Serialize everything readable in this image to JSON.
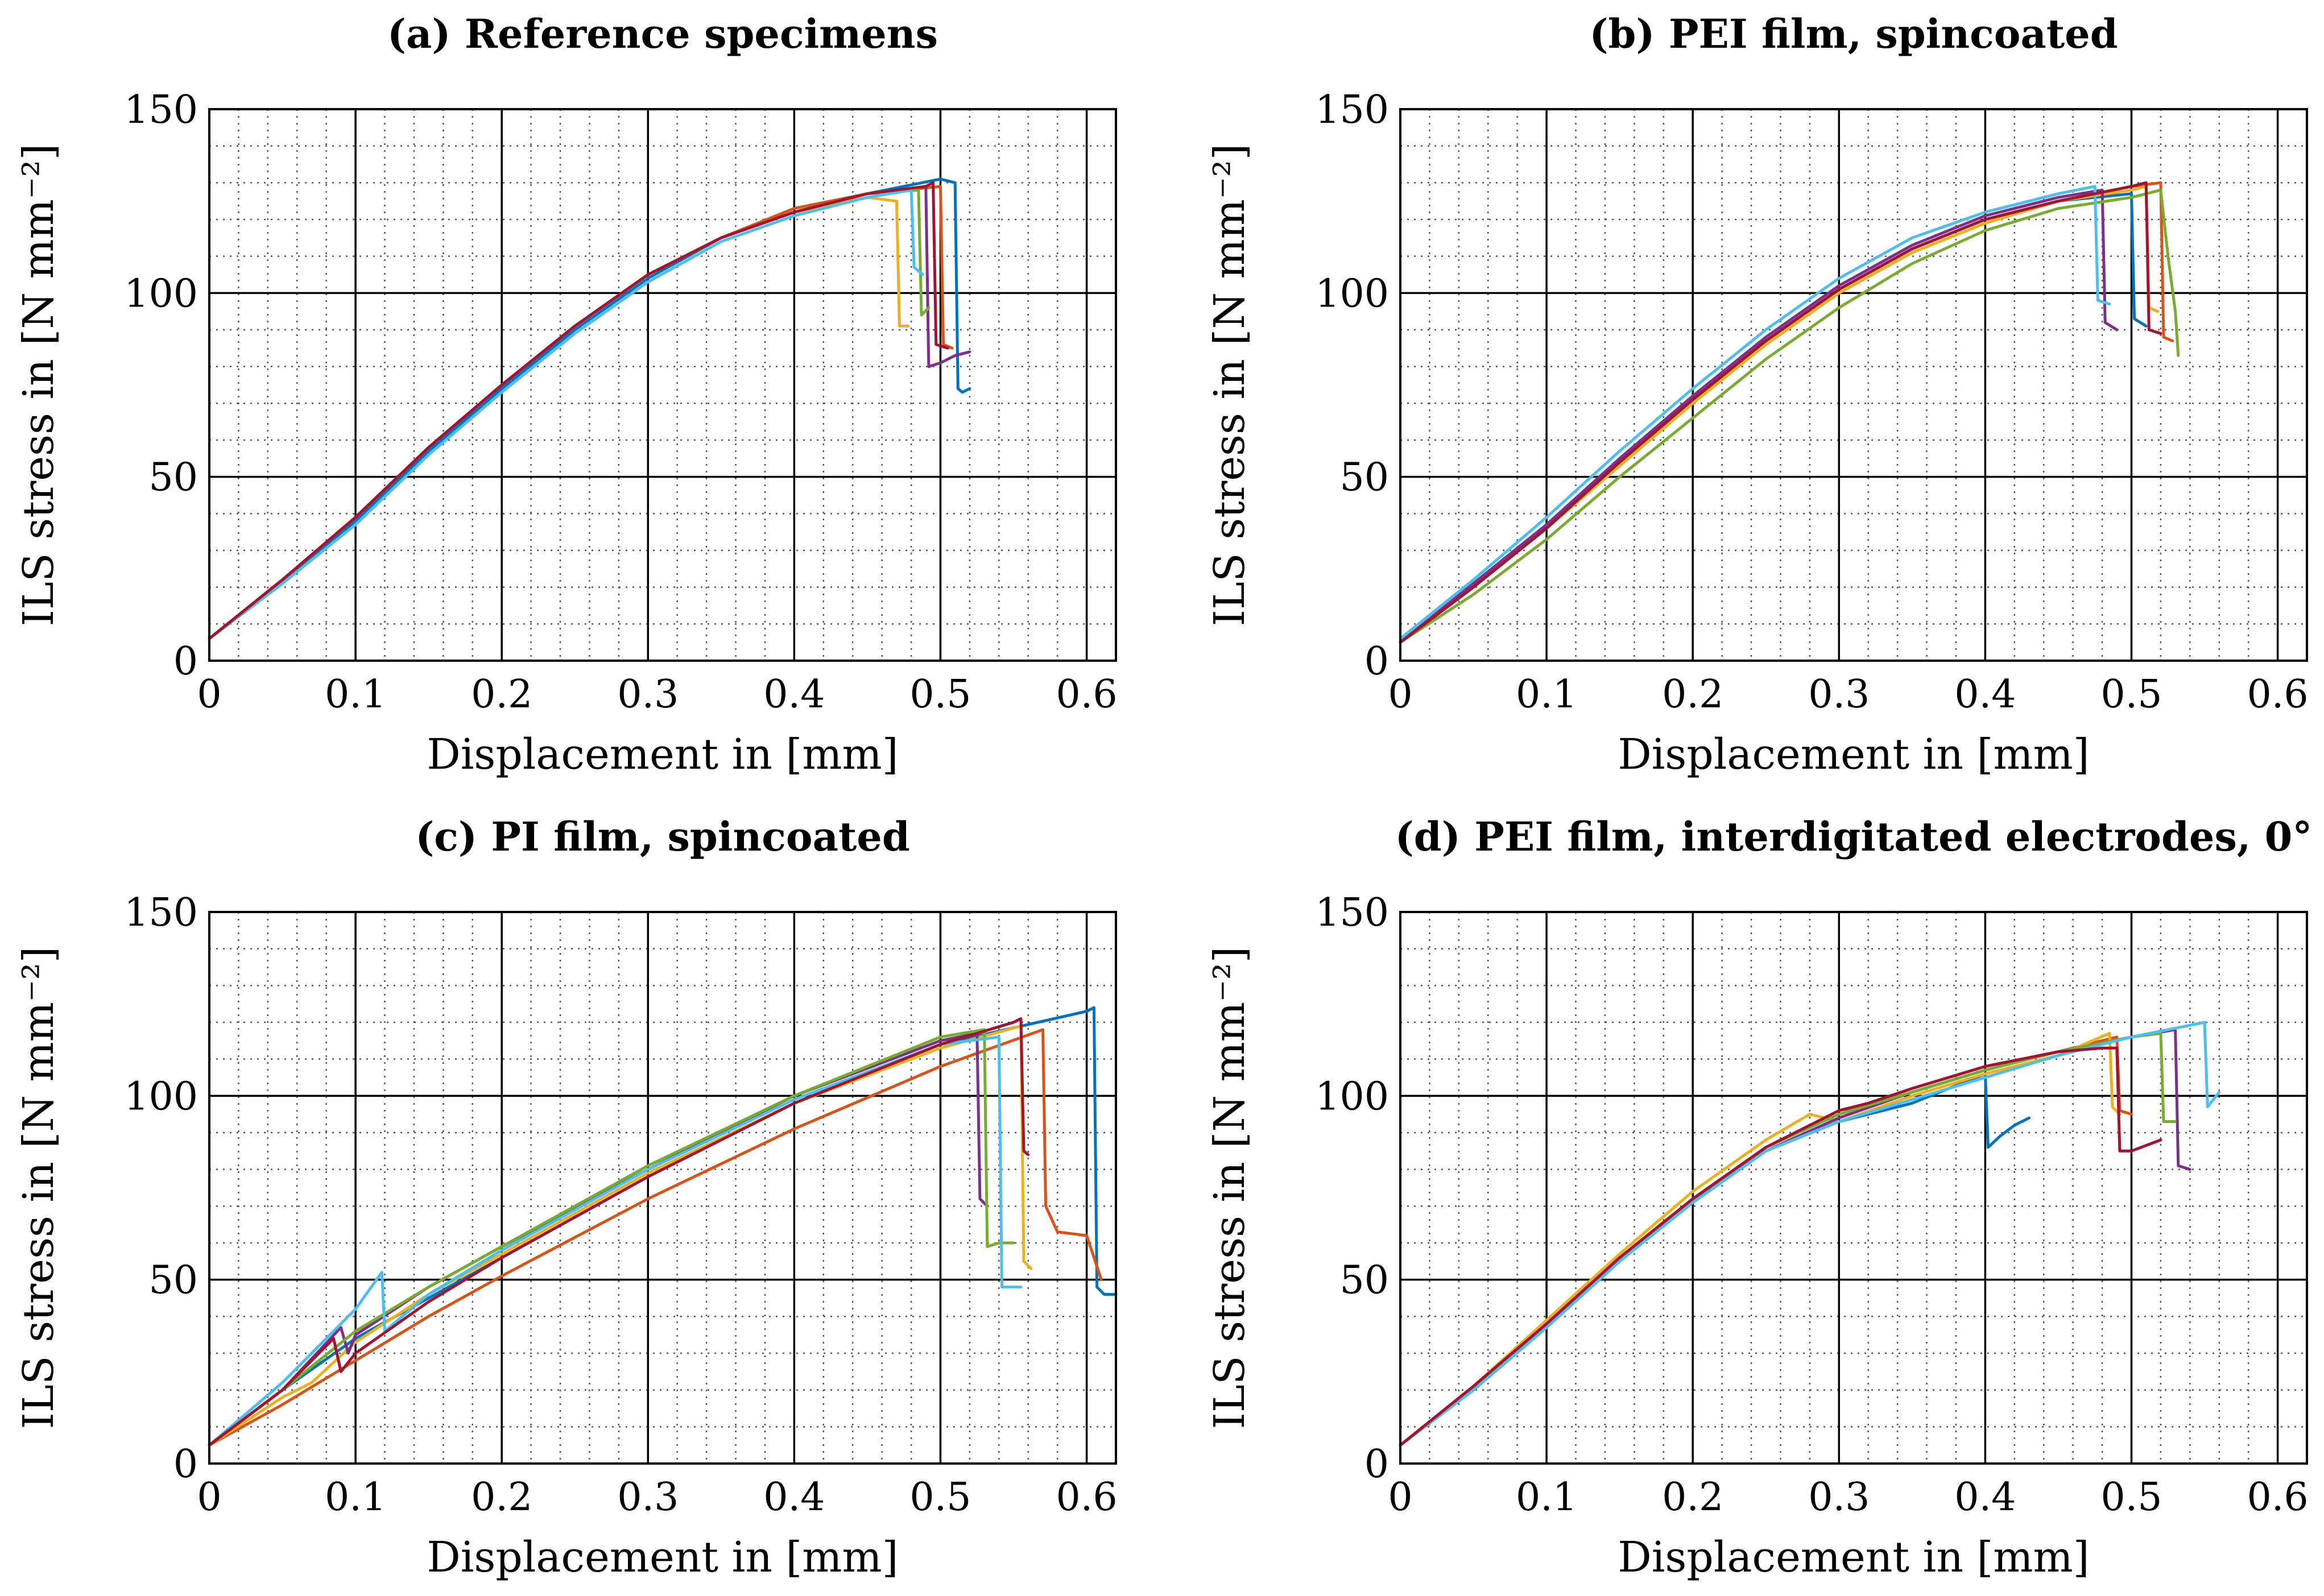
{
  "chart_data": [
    {
      "type": "line",
      "title": "(a) Reference specimens",
      "xlabel": "Displacement in [mm]",
      "ylabel": "ILS stress in [N mm⁻²]",
      "xlim": [
        0,
        0.62
      ],
      "ylim": [
        0,
        150
      ],
      "xticks": [
        0,
        0.1,
        0.2,
        0.3,
        0.4,
        0.5,
        0.6
      ],
      "yticks": [
        0,
        50,
        100,
        150
      ],
      "grid": true,
      "legend": "none",
      "series": [
        {
          "color": "#0072bd",
          "x": [
            0,
            0.05,
            0.1,
            0.15,
            0.2,
            0.25,
            0.3,
            0.35,
            0.4,
            0.45,
            0.5,
            0.51,
            0.512,
            0.515,
            0.52
          ],
          "y": [
            6,
            21,
            38,
            57,
            74,
            90,
            104,
            115,
            122,
            127,
            131,
            130,
            74,
            73,
            74
          ]
        },
        {
          "color": "#d95319",
          "x": [
            0,
            0.05,
            0.1,
            0.15,
            0.2,
            0.25,
            0.3,
            0.35,
            0.4,
            0.45,
            0.5,
            0.502,
            0.508
          ],
          "y": [
            6,
            22,
            39,
            58,
            75,
            91,
            105,
            115,
            123,
            127,
            129,
            86,
            85
          ]
        },
        {
          "color": "#edb120",
          "x": [
            0,
            0.05,
            0.1,
            0.15,
            0.2,
            0.25,
            0.3,
            0.35,
            0.4,
            0.45,
            0.47,
            0.472,
            0.478
          ],
          "y": [
            6,
            22,
            39,
            58,
            75,
            91,
            105,
            115,
            122,
            126,
            125,
            91,
            91
          ]
        },
        {
          "color": "#7e2f8e",
          "x": [
            0,
            0.05,
            0.1,
            0.15,
            0.2,
            0.25,
            0.3,
            0.35,
            0.4,
            0.45,
            0.49,
            0.492,
            0.5,
            0.51,
            0.52
          ],
          "y": [
            6,
            22,
            39,
            58,
            75,
            91,
            105,
            115,
            122,
            127,
            129,
            80,
            81,
            83,
            84
          ]
        },
        {
          "color": "#77ac30",
          "x": [
            0,
            0.05,
            0.1,
            0.15,
            0.2,
            0.25,
            0.3,
            0.35,
            0.4,
            0.45,
            0.485,
            0.487,
            0.492
          ],
          "y": [
            6,
            22,
            39,
            58,
            75,
            91,
            105,
            115,
            122,
            127,
            128,
            94,
            96
          ]
        },
        {
          "color": "#4dbeee",
          "x": [
            0,
            0.05,
            0.1,
            0.15,
            0.2,
            0.25,
            0.3,
            0.35,
            0.4,
            0.45,
            0.48,
            0.482,
            0.488
          ],
          "y": [
            6,
            21,
            37,
            56,
            73,
            89,
            103,
            114,
            121,
            126,
            128,
            107,
            105
          ]
        },
        {
          "color": "#a2142f",
          "x": [
            0,
            0.05,
            0.1,
            0.15,
            0.2,
            0.25,
            0.3,
            0.35,
            0.4,
            0.45,
            0.49,
            0.495,
            0.497,
            0.505
          ],
          "y": [
            6,
            22,
            39,
            58,
            75,
            91,
            105,
            115,
            122,
            127,
            129,
            130,
            86,
            85
          ]
        }
      ]
    },
    {
      "type": "line",
      "title": "(b) PEI film, spincoated",
      "xlabel": "Displacement in [mm]",
      "ylabel": "ILS stress in [N mm⁻²]",
      "xlim": [
        0,
        0.62
      ],
      "ylim": [
        0,
        150
      ],
      "xticks": [
        0,
        0.1,
        0.2,
        0.3,
        0.4,
        0.5,
        0.6
      ],
      "yticks": [
        0,
        50,
        100,
        150
      ],
      "grid": true,
      "legend": "none",
      "series": [
        {
          "color": "#0072bd",
          "x": [
            0,
            0.05,
            0.1,
            0.15,
            0.2,
            0.25,
            0.3,
            0.35,
            0.4,
            0.45,
            0.5,
            0.502,
            0.51
          ],
          "y": [
            5,
            20,
            37,
            54,
            71,
            87,
            101,
            112,
            120,
            125,
            127,
            93,
            91
          ]
        },
        {
          "color": "#d95319",
          "x": [
            0,
            0.05,
            0.1,
            0.15,
            0.2,
            0.25,
            0.3,
            0.35,
            0.4,
            0.45,
            0.5,
            0.52,
            0.522,
            0.528
          ],
          "y": [
            5,
            20,
            36,
            53,
            70,
            86,
            100,
            111,
            119,
            125,
            129,
            130,
            88,
            87
          ]
        },
        {
          "color": "#edb120",
          "x": [
            0,
            0.05,
            0.1,
            0.15,
            0.2,
            0.25,
            0.3,
            0.35,
            0.4,
            0.45,
            0.5,
            0.51,
            0.512,
            0.518
          ],
          "y": [
            5,
            20,
            36,
            53,
            70,
            86,
            100,
            111,
            119,
            125,
            128,
            129,
            96,
            95
          ]
        },
        {
          "color": "#7e2f8e",
          "x": [
            0,
            0.05,
            0.1,
            0.15,
            0.2,
            0.25,
            0.3,
            0.35,
            0.4,
            0.45,
            0.48,
            0.482,
            0.49
          ],
          "y": [
            5,
            21,
            37,
            55,
            72,
            88,
            102,
            113,
            121,
            126,
            128,
            92,
            90
          ]
        },
        {
          "color": "#77ac30",
          "x": [
            0,
            0.05,
            0.1,
            0.15,
            0.2,
            0.25,
            0.3,
            0.35,
            0.4,
            0.45,
            0.5,
            0.52,
            0.525,
            0.53,
            0.532
          ],
          "y": [
            5,
            18,
            33,
            50,
            66,
            82,
            96,
            108,
            117,
            123,
            126,
            128,
            110,
            95,
            83
          ]
        },
        {
          "color": "#4dbeee",
          "x": [
            0,
            0.05,
            0.1,
            0.15,
            0.2,
            0.25,
            0.3,
            0.35,
            0.4,
            0.45,
            0.475,
            0.477,
            0.485
          ],
          "y": [
            6,
            22,
            39,
            57,
            74,
            90,
            104,
            115,
            122,
            127,
            129,
            98,
            97
          ]
        },
        {
          "color": "#a2142f",
          "x": [
            0,
            0.05,
            0.1,
            0.15,
            0.2,
            0.25,
            0.3,
            0.35,
            0.4,
            0.45,
            0.5,
            0.51,
            0.512,
            0.52
          ],
          "y": [
            5,
            20,
            36,
            54,
            71,
            87,
            101,
            112,
            120,
            125,
            129,
            130,
            90,
            89
          ]
        }
      ]
    },
    {
      "type": "line",
      "title": "(c) PI film, spincoated",
      "xlabel": "Displacement in [mm]",
      "ylabel": "ILS stress in [N mm⁻²]",
      "xlim": [
        0,
        0.62
      ],
      "ylim": [
        0,
        150
      ],
      "xticks": [
        0,
        0.1,
        0.2,
        0.3,
        0.4,
        0.5,
        0.6
      ],
      "yticks": [
        0,
        50,
        100,
        150
      ],
      "grid": true,
      "legend": "none",
      "series": [
        {
          "color": "#0072bd",
          "x": [
            0,
            0.05,
            0.1,
            0.15,
            0.2,
            0.3,
            0.4,
            0.5,
            0.6,
            0.605,
            0.607,
            0.612,
            0.62
          ],
          "y": [
            5,
            20,
            34,
            45,
            56,
            78,
            98,
            114,
            123,
            124,
            48,
            46,
            46
          ]
        },
        {
          "color": "#d95319",
          "x": [
            0,
            0.05,
            0.1,
            0.15,
            0.2,
            0.3,
            0.4,
            0.5,
            0.57,
            0.572,
            0.58,
            0.6,
            0.61
          ],
          "y": [
            5,
            16,
            28,
            40,
            51,
            72,
            91,
            108,
            118,
            70,
            63,
            62,
            50
          ]
        },
        {
          "color": "#edb120",
          "x": [
            0,
            0.05,
            0.07,
            0.1,
            0.15,
            0.2,
            0.3,
            0.4,
            0.5,
            0.555,
            0.557,
            0.562
          ],
          "y": [
            5,
            18,
            22,
            33,
            46,
            57,
            79,
            98,
            113,
            119,
            55,
            53
          ]
        },
        {
          "color": "#7e2f8e",
          "x": [
            0,
            0.05,
            0.09,
            0.095,
            0.1,
            0.15,
            0.2,
            0.3,
            0.4,
            0.5,
            0.525,
            0.527,
            0.532
          ],
          "y": [
            5,
            20,
            37,
            30,
            35,
            48,
            59,
            80,
            100,
            115,
            117,
            72,
            70
          ]
        },
        {
          "color": "#77ac30",
          "x": [
            0,
            0.05,
            0.1,
            0.15,
            0.2,
            0.3,
            0.4,
            0.5,
            0.53,
            0.532,
            0.54,
            0.55
          ],
          "y": [
            5,
            20,
            36,
            48,
            59,
            81,
            100,
            116,
            118,
            59,
            60,
            60
          ]
        },
        {
          "color": "#4dbeee",
          "x": [
            0,
            0.05,
            0.1,
            0.118,
            0.12,
            0.15,
            0.2,
            0.3,
            0.4,
            0.5,
            0.54,
            0.542,
            0.555
          ],
          "y": [
            5,
            22,
            42,
            52,
            36,
            46,
            58,
            80,
            99,
            114,
            116,
            48,
            48
          ]
        },
        {
          "color": "#a2142f",
          "x": [
            0,
            0.05,
            0.085,
            0.09,
            0.1,
            0.15,
            0.2,
            0.3,
            0.4,
            0.5,
            0.55,
            0.555,
            0.557,
            0.56
          ],
          "y": [
            5,
            20,
            34,
            25,
            30,
            44,
            56,
            78,
            98,
            114,
            120,
            121,
            85,
            84
          ]
        }
      ]
    },
    {
      "type": "line",
      "title": "(d) PEI film, interdigitated electrodes, 0°",
      "xlabel": "Displacement in [mm]",
      "ylabel": "ILS stress in [N mm⁻²]",
      "xlim": [
        0,
        0.62
      ],
      "ylim": [
        0,
        150
      ],
      "xticks": [
        0,
        0.1,
        0.2,
        0.3,
        0.4,
        0.5,
        0.6
      ],
      "yticks": [
        0,
        50,
        100,
        150
      ],
      "grid": true,
      "legend": "none",
      "series": [
        {
          "color": "#0072bd",
          "x": [
            0,
            0.05,
            0.1,
            0.15,
            0.2,
            0.25,
            0.3,
            0.35,
            0.4,
            0.402,
            0.41,
            0.42,
            0.43
          ],
          "y": [
            5,
            20,
            37,
            55,
            72,
            85,
            93,
            98,
            106,
            86,
            89,
            92,
            94
          ]
        },
        {
          "color": "#d95319",
          "x": [
            0,
            0.05,
            0.1,
            0.15,
            0.2,
            0.25,
            0.3,
            0.35,
            0.4,
            0.45,
            0.49,
            0.492,
            0.5
          ],
          "y": [
            5,
            21,
            38,
            56,
            72,
            86,
            95,
            102,
            108,
            112,
            116,
            96,
            95
          ]
        },
        {
          "color": "#edb120",
          "x": [
            0,
            0.05,
            0.1,
            0.15,
            0.2,
            0.25,
            0.28,
            0.3,
            0.35,
            0.4,
            0.45,
            0.485,
            0.487,
            0.492
          ],
          "y": [
            5,
            21,
            39,
            57,
            74,
            88,
            95,
            93,
            100,
            106,
            111,
            117,
            97,
            95
          ]
        },
        {
          "color": "#7e2f8e",
          "x": [
            0,
            0.05,
            0.1,
            0.15,
            0.2,
            0.25,
            0.3,
            0.35,
            0.4,
            0.45,
            0.5,
            0.53,
            0.532,
            0.54
          ],
          "y": [
            5,
            20,
            37,
            55,
            71,
            85,
            94,
            101,
            107,
            112,
            116,
            118,
            81,
            80
          ]
        },
        {
          "color": "#77ac30",
          "x": [
            0,
            0.05,
            0.1,
            0.15,
            0.2,
            0.25,
            0.3,
            0.35,
            0.4,
            0.45,
            0.5,
            0.52,
            0.522,
            0.53
          ],
          "y": [
            5,
            20,
            38,
            56,
            72,
            86,
            95,
            101,
            107,
            112,
            116,
            117,
            93,
            93
          ]
        },
        {
          "color": "#4dbeee",
          "x": [
            0,
            0.05,
            0.1,
            0.15,
            0.2,
            0.25,
            0.3,
            0.35,
            0.4,
            0.45,
            0.5,
            0.55,
            0.552,
            0.56
          ],
          "y": [
            5,
            20,
            37,
            55,
            71,
            85,
            93,
            99,
            105,
            111,
            116,
            120,
            97,
            101
          ]
        },
        {
          "color": "#a2142f",
          "x": [
            0,
            0.05,
            0.1,
            0.15,
            0.2,
            0.25,
            0.3,
            0.32,
            0.35,
            0.4,
            0.45,
            0.48,
            0.49,
            0.492,
            0.5,
            0.52
          ],
          "y": [
            5,
            21,
            38,
            56,
            72,
            86,
            96,
            98,
            102,
            108,
            112,
            113,
            113,
            85,
            85,
            88
          ]
        }
      ]
    }
  ]
}
